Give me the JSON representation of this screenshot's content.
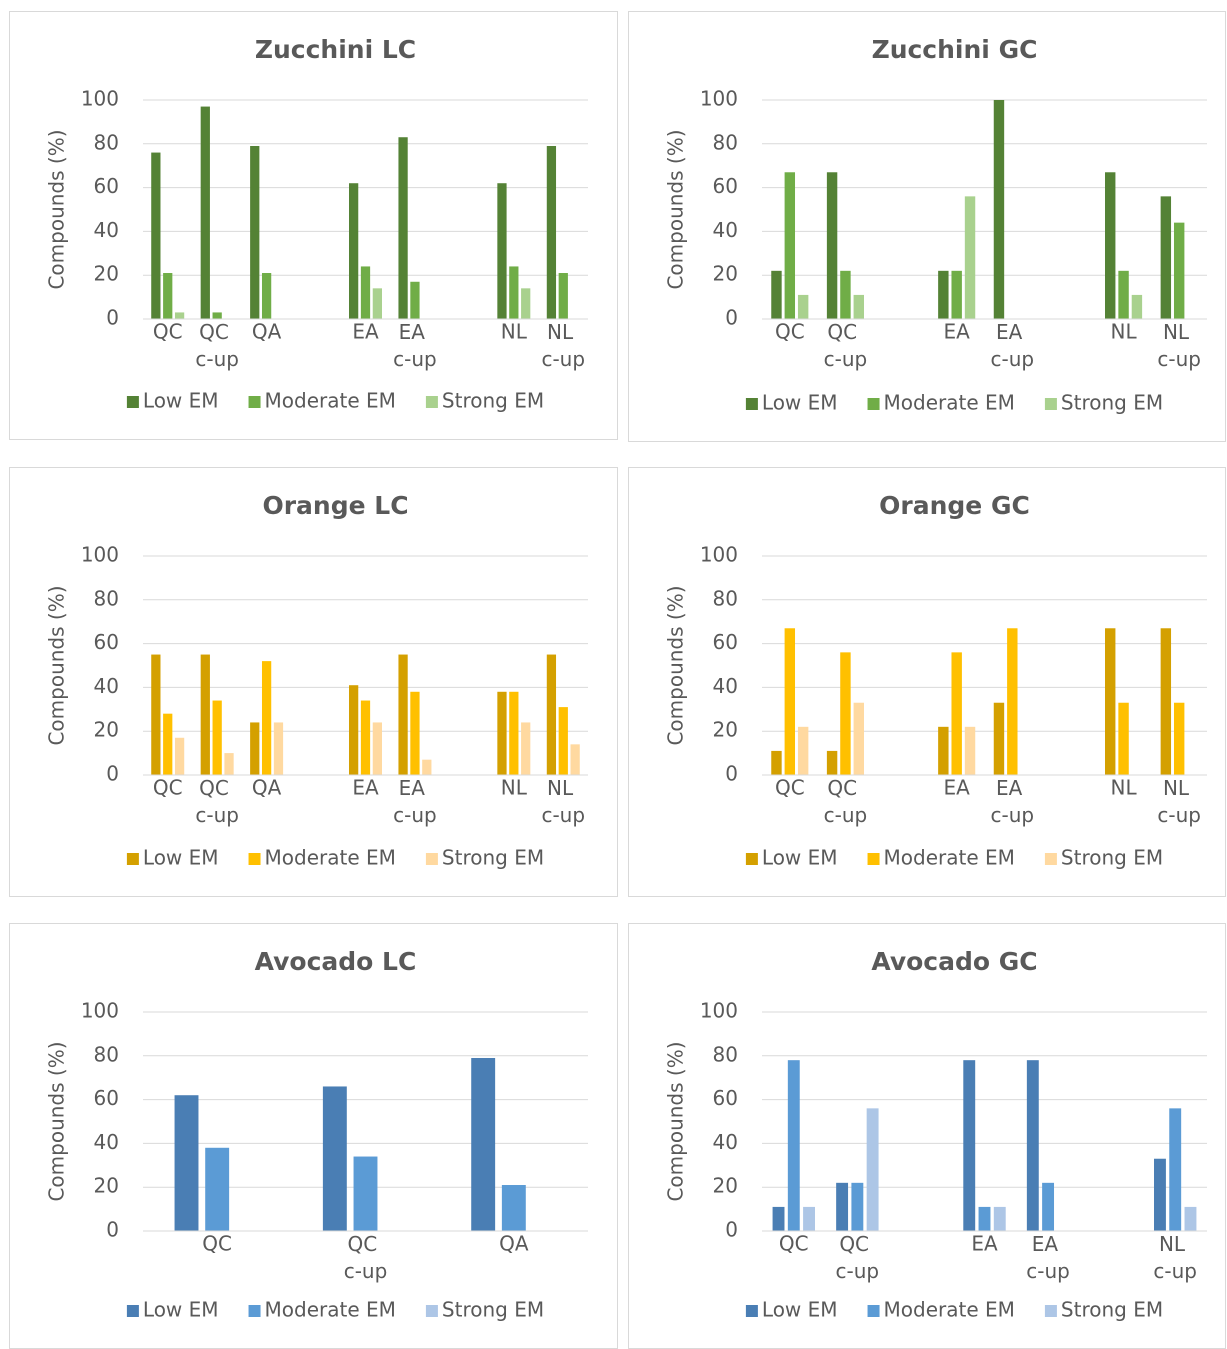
{
  "chart_data": [
    {
      "type": "bar",
      "title": "Zucchini LC",
      "ylabel": "Compounds (%)",
      "categories": [
        "QC",
        "QC c-up",
        "QA",
        null,
        "EA",
        "EA c-up",
        null,
        "NL",
        "NL c-up"
      ],
      "series": [
        {
          "name": "Low EM",
          "color": "#548235",
          "values": [
            76,
            97,
            79,
            null,
            62,
            83,
            null,
            62,
            79
          ]
        },
        {
          "name": "Moderate EM",
          "color": "#70ad47",
          "values": [
            21,
            3,
            21,
            null,
            24,
            17,
            null,
            24,
            21
          ]
        },
        {
          "name": "Strong EM",
          "color": "#a9d18e",
          "values": [
            3,
            0,
            0,
            null,
            14,
            0,
            null,
            14,
            0
          ]
        }
      ],
      "ylim": [
        0,
        100
      ],
      "yticks": [
        0,
        20,
        40,
        60,
        80,
        100
      ],
      "grid": true,
      "legend": "bottom"
    },
    {
      "type": "bar",
      "title": "Zucchini GC",
      "ylabel": "Compounds (%)",
      "categories": [
        "QC",
        "QC c-up",
        null,
        "EA",
        "EA c-up",
        null,
        "NL",
        "NL c-up"
      ],
      "series": [
        {
          "name": "Low EM",
          "color": "#548235",
          "values": [
            22,
            67,
            null,
            22,
            100,
            null,
            67,
            56
          ]
        },
        {
          "name": "Moderate EM",
          "color": "#70ad47",
          "values": [
            67,
            22,
            null,
            22,
            0,
            null,
            22,
            44
          ]
        },
        {
          "name": "Strong EM",
          "color": "#a9d18e",
          "values": [
            11,
            11,
            null,
            56,
            0,
            null,
            11,
            0
          ]
        }
      ],
      "ylim": [
        0,
        100
      ],
      "yticks": [
        0,
        20,
        40,
        60,
        80,
        100
      ],
      "grid": true,
      "legend": "bottom"
    },
    {
      "type": "bar",
      "title": "Orange LC",
      "ylabel": "Compounds (%)",
      "categories": [
        "QC",
        "QC c-up",
        "QA",
        null,
        "EA",
        "EA c-up",
        null,
        "NL",
        "NL c-up"
      ],
      "series": [
        {
          "name": "Low EM",
          "color": "#d4a000",
          "values": [
            55,
            55,
            24,
            null,
            41,
            55,
            null,
            38,
            55
          ]
        },
        {
          "name": "Moderate EM",
          "color": "#ffc000",
          "values": [
            28,
            34,
            52,
            null,
            34,
            38,
            null,
            38,
            31
          ]
        },
        {
          "name": "Strong EM",
          "color": "#ffd9a0",
          "values": [
            17,
            10,
            24,
            null,
            24,
            7,
            null,
            24,
            14
          ]
        }
      ],
      "ylim": [
        0,
        100
      ],
      "yticks": [
        0,
        20,
        40,
        60,
        80,
        100
      ],
      "grid": true,
      "legend": "bottom"
    },
    {
      "type": "bar",
      "title": "Orange GC",
      "ylabel": "Compounds (%)",
      "categories": [
        "QC",
        "QC c-up",
        null,
        "EA",
        "EA c-up",
        null,
        "NL",
        "NL c-up"
      ],
      "series": [
        {
          "name": "Low EM",
          "color": "#d4a000",
          "values": [
            11,
            11,
            null,
            22,
            33,
            null,
            67,
            67
          ]
        },
        {
          "name": "Moderate EM",
          "color": "#ffc000",
          "values": [
            67,
            56,
            null,
            56,
            67,
            null,
            33,
            33
          ]
        },
        {
          "name": "Strong EM",
          "color": "#ffd9a0",
          "values": [
            22,
            33,
            null,
            22,
            0,
            null,
            0,
            0
          ]
        }
      ],
      "ylim": [
        0,
        100
      ],
      "yticks": [
        0,
        20,
        40,
        60,
        80,
        100
      ],
      "grid": true,
      "legend": "bottom"
    },
    {
      "type": "bar",
      "title": "Avocado LC",
      "ylabel": "Compounds (%)",
      "categories": [
        "QC",
        "QC c-up",
        "QA"
      ],
      "series": [
        {
          "name": "Low EM",
          "color": "#4a7eb4",
          "values": [
            62,
            66,
            79
          ]
        },
        {
          "name": "Moderate EM",
          "color": "#5b9bd5",
          "values": [
            38,
            34,
            21
          ]
        },
        {
          "name": "Strong EM",
          "color": "#adc6e6",
          "values": [
            0,
            0,
            0
          ]
        }
      ],
      "ylim": [
        0,
        100
      ],
      "yticks": [
        0,
        20,
        40,
        60,
        80,
        100
      ],
      "grid": true,
      "legend": "bottom"
    },
    {
      "type": "bar",
      "title": "Avocado GC",
      "ylabel": "Compounds (%)",
      "categories": [
        "QC",
        "QC c-up",
        null,
        "EA",
        "EA c-up",
        null,
        "NL c-up"
      ],
      "series": [
        {
          "name": "Low EM",
          "color": "#4a7eb4",
          "values": [
            11,
            22,
            null,
            78,
            78,
            null,
            33
          ]
        },
        {
          "name": "Moderate EM",
          "color": "#5b9bd5",
          "values": [
            78,
            22,
            null,
            11,
            22,
            null,
            56
          ]
        },
        {
          "name": "Strong EM",
          "color": "#adc6e6",
          "values": [
            11,
            56,
            null,
            11,
            0,
            null,
            11
          ]
        }
      ],
      "ylim": [
        0,
        100
      ],
      "yticks": [
        0,
        20,
        40,
        60,
        80,
        100
      ],
      "grid": true,
      "legend": "bottom"
    }
  ]
}
